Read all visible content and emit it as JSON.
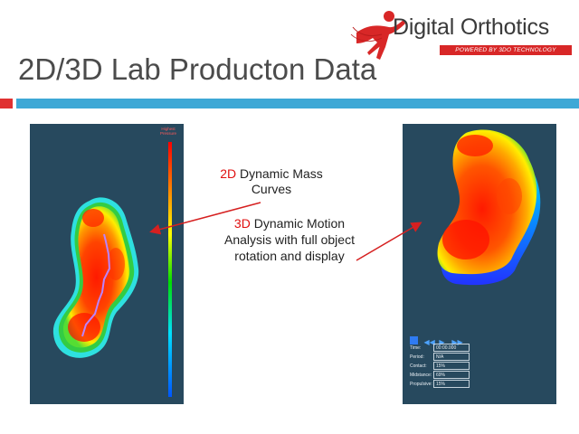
{
  "logo": {
    "name": "Digital Orthotics",
    "tagline": "POWERED BY 3DO TECHNOLOGY"
  },
  "title": "2D/3D Lab Producton Data",
  "colors": {
    "accent_red": "#e03131",
    "accent_blue": "#3ea8d6",
    "panel_bg": "#27495e"
  },
  "left_panel": {
    "scale_label": "Highest Pressure"
  },
  "annotation_2d": {
    "prefix": "2D",
    "line1_rest": " Dynamic Mass",
    "line2": "Curves"
  },
  "annotation_3d": {
    "prefix": "3D",
    "line1_rest": " Dynamic Motion",
    "line2": "Analysis with full object",
    "line3": "rotation and display"
  },
  "right_panel": {
    "controls": [
      "stop-icon",
      "rewind-icon",
      "play-icon",
      "fast-forward-icon"
    ],
    "stats": [
      {
        "label": "Time:",
        "value": "00:00.000"
      },
      {
        "label": "Period:",
        "value": "N/A"
      },
      {
        "label": "Contact:",
        "value": "15%"
      },
      {
        "label": "Midstance:",
        "value": "69%"
      },
      {
        "label": "Propulsive:",
        "value": "15%"
      }
    ]
  }
}
